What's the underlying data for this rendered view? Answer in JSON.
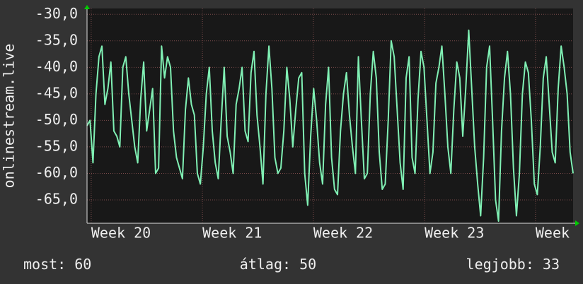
{
  "chart_data": {
    "type": "line",
    "y_label": "onlinestream.live",
    "series": [
      {
        "name": "onlinestream.live",
        "color": "#80f0b4",
        "values": [
          -51,
          -50,
          -58,
          -45,
          -38,
          -36,
          -47,
          -44,
          -39,
          -52,
          -53,
          -55,
          -40,
          -38,
          -45,
          -50,
          -55,
          -58,
          -46,
          -39,
          -52,
          -48,
          -44,
          -60,
          -59,
          -36,
          -42,
          -38,
          -40,
          -52,
          -57,
          -59,
          -61,
          -48,
          -42,
          -47,
          -49,
          -60,
          -62,
          -55,
          -45,
          -40,
          -52,
          -58,
          -61,
          -50,
          -40,
          -53,
          -56,
          -60,
          -47,
          -44,
          -40,
          -52,
          -54,
          -41,
          -37,
          -49,
          -55,
          -62,
          -45,
          -36,
          -44,
          -57,
          -60,
          -59,
          -52,
          -40,
          -46,
          -55,
          -48,
          -42,
          -41,
          -60,
          -66,
          -53,
          -44,
          -50,
          -58,
          -62,
          -47,
          -40,
          -57,
          -63,
          -64,
          -52,
          -45,
          -41,
          -49,
          -55,
          -60,
          -38,
          -50,
          -61,
          -60,
          -45,
          -37,
          -42,
          -56,
          -63,
          -62,
          -50,
          -35,
          -38,
          -48,
          -58,
          -63,
          -42,
          -38,
          -57,
          -60,
          -46,
          -37,
          -40,
          -50,
          -60,
          -56,
          -43,
          -40,
          -36,
          -45,
          -55,
          -60,
          -48,
          -39,
          -42,
          -53,
          -44,
          -33,
          -44,
          -55,
          -62,
          -68,
          -57,
          -40,
          -36,
          -50,
          -65,
          -69,
          -52,
          -42,
          -37,
          -45,
          -59,
          -68,
          -60,
          -45,
          -39,
          -41,
          -50,
          -62,
          -64,
          -55,
          -42,
          -38,
          -47,
          -56,
          -58,
          -44,
          -36,
          -40,
          -45,
          -56,
          -60
        ]
      }
    ],
    "xlim": [
      0,
      163
    ],
    "xticks": [
      {
        "value": 1.4,
        "label": "Week 20"
      },
      {
        "value": 38.7,
        "label": "Week 21"
      },
      {
        "value": 75.9,
        "label": "Week 22"
      },
      {
        "value": 113.2,
        "label": "Week 23"
      },
      {
        "value": 150.4,
        "label": "Week"
      }
    ],
    "ylim": [
      -69.4,
      -28.9
    ],
    "yticks": [
      {
        "value": -30,
        "label": "-30,0"
      },
      {
        "value": -35,
        "label": "-35,0"
      },
      {
        "value": -40,
        "label": "-40,0"
      },
      {
        "value": -45,
        "label": "-45,0"
      },
      {
        "value": -50,
        "label": "-50,0"
      },
      {
        "value": -55,
        "label": "-55,0"
      },
      {
        "value": -60,
        "label": "-60,0"
      },
      {
        "value": -65,
        "label": "-65,0"
      }
    ],
    "grid": true,
    "stats": [
      {
        "label": "most:",
        "value": 60
      },
      {
        "label": "átlag:",
        "value": 50
      },
      {
        "label": "legjobb:",
        "value": 33
      }
    ]
  }
}
